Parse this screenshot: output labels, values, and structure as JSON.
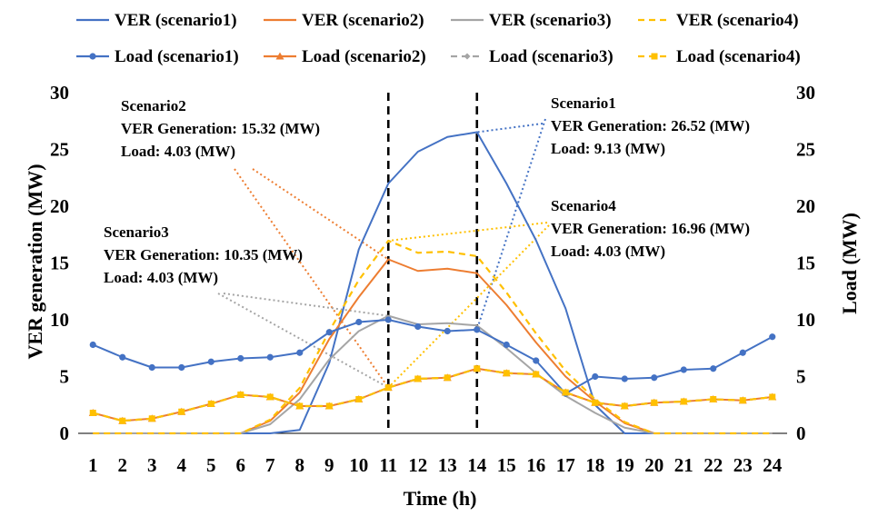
{
  "chart_data": {
    "type": "line",
    "xlabel": "Time (h)",
    "ylabel": "VER generation (MW)",
    "y2label": "Load (MW)",
    "x": [
      1,
      2,
      3,
      4,
      5,
      6,
      7,
      8,
      9,
      10,
      11,
      12,
      13,
      14,
      15,
      16,
      17,
      18,
      19,
      20,
      21,
      22,
      23,
      24
    ],
    "x_tick_labels": [
      "1",
      "2",
      "3",
      "4",
      "5",
      "6",
      "7",
      "8",
      "9",
      "10",
      "11",
      "12",
      "13",
      "14",
      "15",
      "16",
      "17",
      "18",
      "19",
      "20",
      "21",
      "22",
      "23",
      "24"
    ],
    "ylim": [
      0,
      30
    ],
    "y2lim": [
      0,
      30
    ],
    "y_ticks": [
      0,
      5,
      10,
      15,
      20,
      25,
      30
    ],
    "y_tick_labels": [
      "0",
      "5",
      "10",
      "15",
      "20",
      "25",
      "30"
    ],
    "y2_ticks": [
      0,
      5,
      10,
      15,
      20,
      25,
      30
    ],
    "y2_tick_labels": [
      "0",
      "5",
      "10",
      "15",
      "20",
      "25",
      "30"
    ],
    "grid": false,
    "legend_position": "top",
    "vertical_markers": [
      11,
      14
    ],
    "series": [
      {
        "name": "VER (scenario1)",
        "axis": "left",
        "color": "#4472C4",
        "dash": "solid",
        "marker": "none",
        "values": [
          0,
          0,
          0,
          0,
          0,
          0,
          0,
          0.3,
          6.2,
          16.2,
          22.0,
          24.8,
          26.1,
          26.52,
          22.0,
          17.0,
          11.0,
          2.5,
          0,
          0,
          0,
          0,
          0,
          0
        ]
      },
      {
        "name": "VER (scenario2)",
        "axis": "left",
        "color": "#ED7D31",
        "dash": "solid",
        "marker": "none",
        "values": [
          0,
          0,
          0,
          0,
          0,
          0,
          1.1,
          3.6,
          8.3,
          12.0,
          15.32,
          14.3,
          14.5,
          14.1,
          11.3,
          8.0,
          5.0,
          2.8,
          0.9,
          0,
          0,
          0,
          0,
          0
        ]
      },
      {
        "name": "VER (scenario3)",
        "axis": "left",
        "color": "#A5A5A5",
        "dash": "solid",
        "marker": "none",
        "values": [
          0,
          0,
          0,
          0,
          0,
          0,
          0.8,
          3.0,
          6.5,
          9.0,
          10.35,
          9.6,
          9.7,
          9.5,
          7.5,
          5.3,
          3.3,
          1.8,
          0.5,
          0,
          0,
          0,
          0,
          0
        ]
      },
      {
        "name": "VER (scenario4)",
        "axis": "left",
        "color": "#FFC000",
        "dash": "dashed",
        "marker": "none",
        "values": [
          0,
          0,
          0,
          0,
          0,
          0,
          1.2,
          4.0,
          9.0,
          13.5,
          16.96,
          15.9,
          16.0,
          15.6,
          12.4,
          8.8,
          5.5,
          3.0,
          1.0,
          0,
          0,
          0,
          0,
          0
        ]
      },
      {
        "name": "Load (scenario1)",
        "axis": "right",
        "color": "#4472C4",
        "dash": "solid",
        "marker": "circle",
        "values": [
          7.8,
          6.7,
          5.8,
          5.8,
          6.3,
          6.6,
          6.7,
          7.1,
          8.9,
          9.8,
          10.0,
          9.4,
          9.0,
          9.13,
          7.8,
          6.4,
          3.5,
          5.0,
          4.8,
          4.9,
          5.6,
          5.7,
          7.1,
          8.5
        ]
      },
      {
        "name": "Load (scenario2)",
        "axis": "right",
        "color": "#ED7D31",
        "dash": "solid",
        "marker": "triangle",
        "values": [
          1.8,
          1.1,
          1.3,
          1.9,
          2.6,
          3.4,
          3.2,
          2.4,
          2.4,
          3.0,
          4.03,
          4.8,
          4.9,
          5.7,
          5.3,
          5.2,
          3.6,
          2.7,
          2.4,
          2.7,
          2.8,
          3.0,
          2.9,
          3.2
        ]
      },
      {
        "name": "Load (scenario3)",
        "axis": "right",
        "color": "#A5A5A5",
        "dash": "dashed",
        "marker": "diamond",
        "values": [
          1.8,
          1.1,
          1.3,
          1.9,
          2.6,
          3.4,
          3.2,
          2.4,
          2.4,
          3.0,
          4.03,
          4.8,
          4.9,
          5.7,
          5.3,
          5.2,
          3.6,
          2.7,
          2.4,
          2.7,
          2.8,
          3.0,
          2.9,
          3.2
        ]
      },
      {
        "name": "Load (scenario4)",
        "axis": "right",
        "color": "#FFC000",
        "dash": "dashed",
        "marker": "square",
        "values": [
          1.8,
          1.1,
          1.3,
          1.9,
          2.6,
          3.4,
          3.2,
          2.4,
          2.4,
          3.0,
          4.03,
          4.8,
          4.9,
          5.7,
          5.3,
          5.2,
          3.6,
          2.7,
          2.4,
          2.7,
          2.8,
          3.0,
          2.9,
          3.2
        ]
      }
    ],
    "annotations": [
      {
        "id": "scenario2",
        "color": "#ED7D31",
        "lines": [
          "Scenario2",
          "VER Generation: 15.32 (MW)",
          "Load: 4.03 (MW)"
        ]
      },
      {
        "id": "scenario1",
        "color": "#4472C4",
        "lines": [
          "Scenario1",
          "VER Generation: 26.52 (MW)",
          "Load: 9.13 (MW)"
        ]
      },
      {
        "id": "scenario3",
        "color": "#A5A5A5",
        "lines": [
          "Scenario3",
          "VER Generation: 10.35 (MW)",
          "Load: 4.03 (MW)"
        ]
      },
      {
        "id": "scenario4",
        "color": "#FFC000",
        "lines": [
          "Scenario4",
          "VER Generation: 16.96 (MW)",
          "Load: 4.03 (MW)"
        ]
      }
    ]
  }
}
